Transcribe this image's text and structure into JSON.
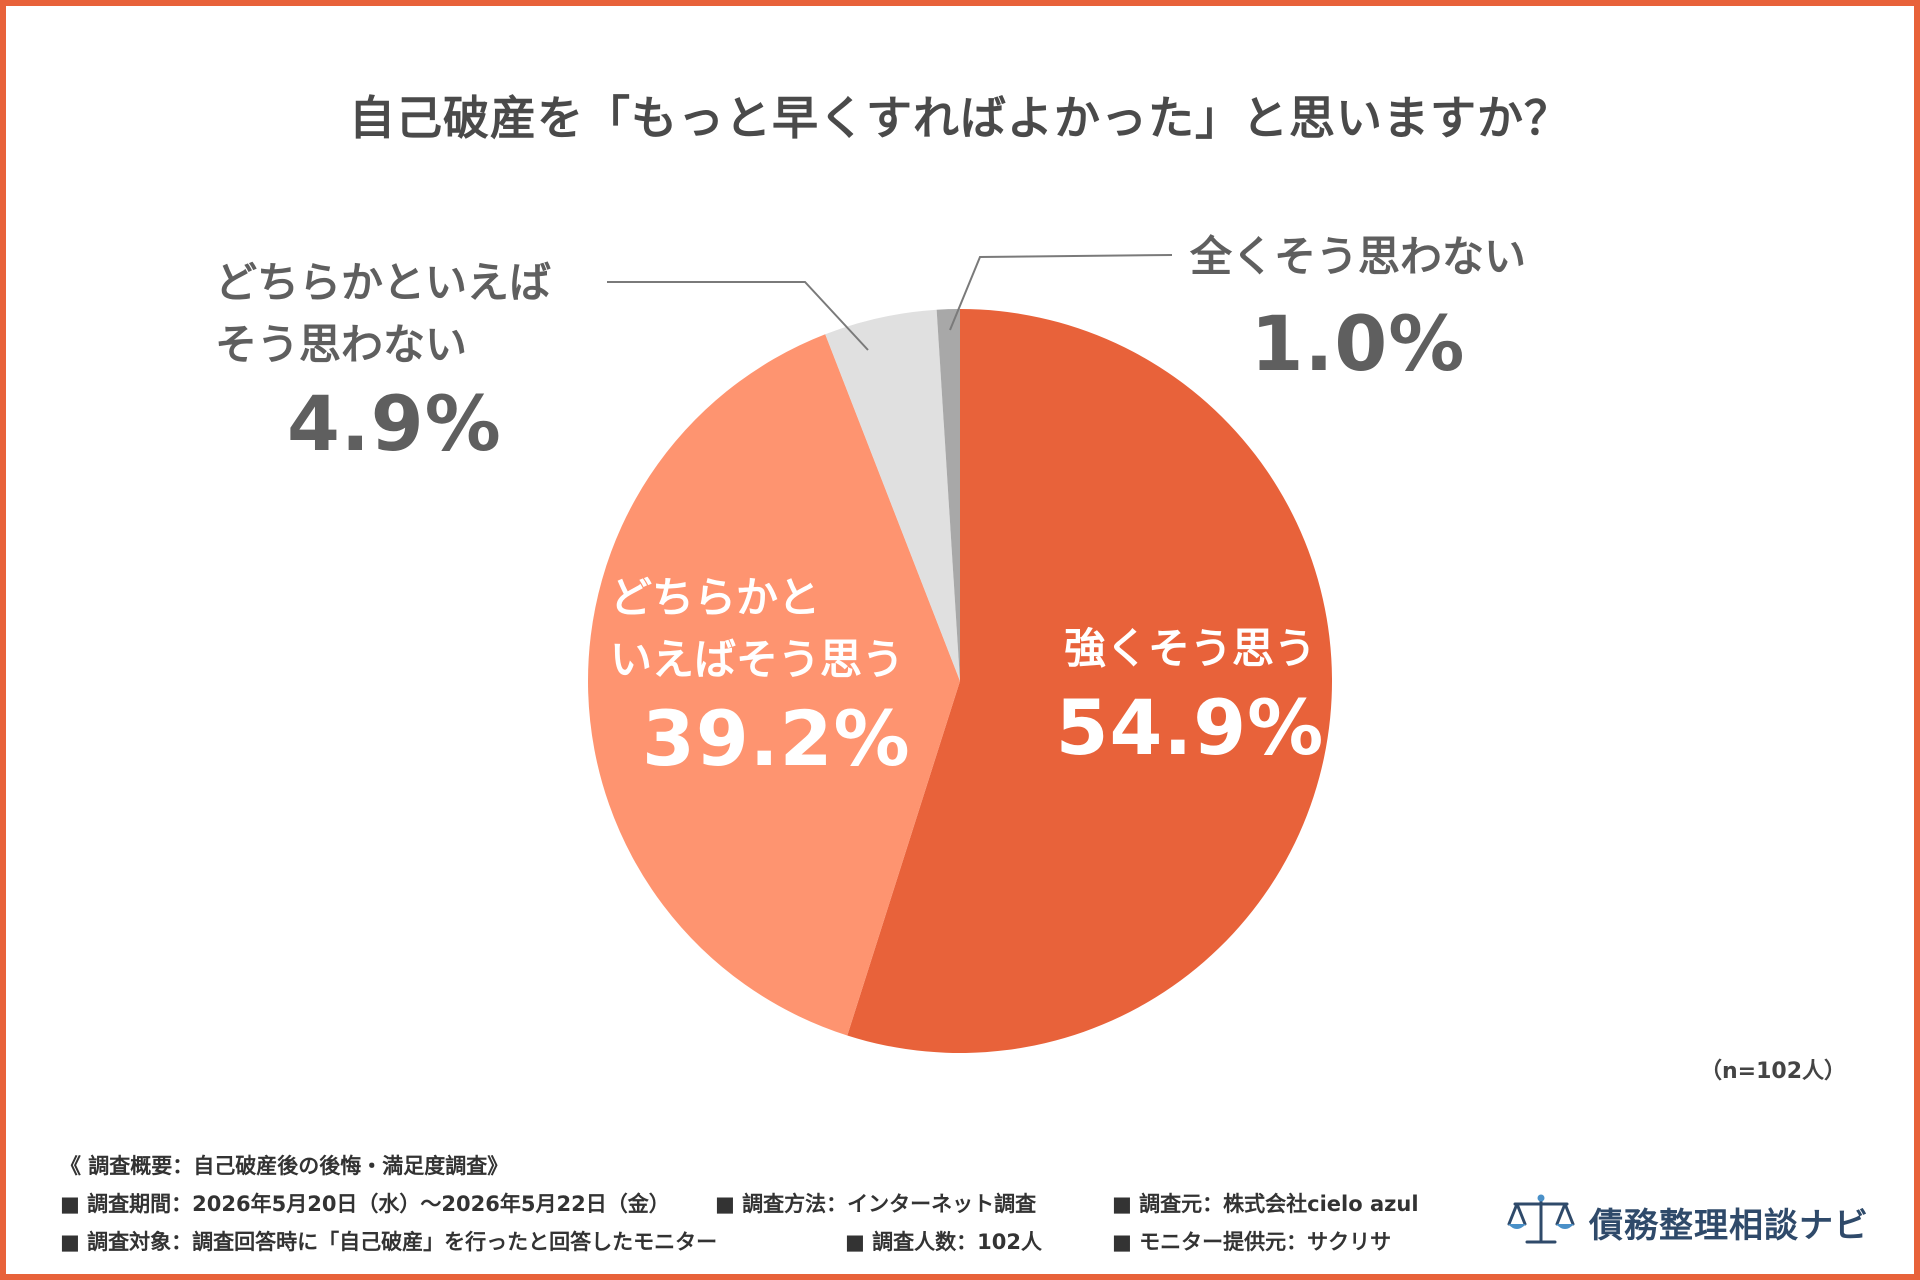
{
  "title": "自己破産を「もっと早くすればよかった」と思いますか？",
  "chart_data": {
    "type": "pie",
    "slices": [
      {
        "label": "強くそう思う",
        "value": 54.9,
        "value_label": "54.9%",
        "color": "#e8623a"
      },
      {
        "label": "どちらかといえばそう思う",
        "value": 39.2,
        "value_label": "39.2%",
        "color": "#fe9470"
      },
      {
        "label": "どちらかといえばそう思わない",
        "value": 4.9,
        "value_label": "4.9%",
        "color": "#e0e0e0"
      },
      {
        "label": "全くそう思わない",
        "value": 1.0,
        "value_label": "1.0%",
        "color": "#a8a8a8"
      }
    ],
    "start": "12 o'clock",
    "direction": "clockwise"
  },
  "labels": {
    "s1_line1": "強くそう思う",
    "s2_line1": "どちらかと",
    "s2_line2": "いえばそう思う",
    "s3_line1": "どちらかといえば",
    "s3_line2": "そう思わない",
    "s4_line1": "全くそう思わない"
  },
  "n_note": "（n=102人）",
  "footer": {
    "summary": "《 調査概要：自己破産後の後悔・満足度調査》",
    "period": "■ 調査期間：2026年5月20日（水）〜2026年5月22日（金）",
    "method": "■ 調査方法：インターネット調査",
    "source": "■ 調査元：株式会社cielo azul",
    "target": "■ 調査対象：調査回答時に「自己破産」を行ったと回答したモニター",
    "count": "■ 調査人数：102人",
    "provider": "■ モニター提供元：サクリサ"
  },
  "logo": {
    "name": "債務整理相談ナビ",
    "icon": "scales-of-justice-icon",
    "color": "#2f4a6a"
  }
}
